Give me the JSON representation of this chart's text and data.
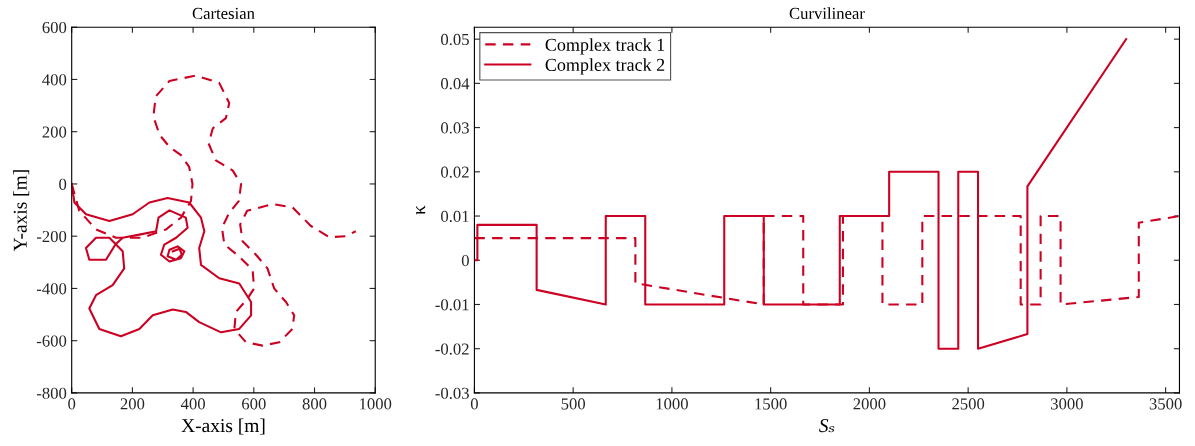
{
  "chart_data": [
    {
      "type": "line",
      "title": "Cartesian",
      "xlabel": "X-axis [m]",
      "ylabel": "Y-axis [m]",
      "xlim": [
        0,
        1000
      ],
      "ylim": [
        -800,
        600
      ],
      "xticks": [
        0,
        200,
        400,
        600,
        800,
        1000
      ],
      "yticks": [
        -800,
        -600,
        -400,
        -200,
        0,
        200,
        400,
        600
      ],
      "grid": false,
      "legend": false,
      "series": [
        {
          "color": "#cc0022",
          "line_style": "dashed",
          "x": [
            0,
            25,
            80,
            146,
            234,
            311,
            360,
            393,
            398,
            387,
            360,
            322,
            290,
            269,
            277,
            322,
            409,
            486,
            519,
            508,
            465,
            451,
            475,
            530,
            558,
            551,
            519,
            495,
            503,
            551,
            596,
            601,
            579,
            541,
            536,
            574,
            629,
            684,
            727,
            733,
            706,
            667,
            645,
            607,
            563,
            555,
            578,
            662,
            728,
            788,
            849,
            903,
            936
          ],
          "values": [
            0,
            -103,
            -174,
            -206,
            -206,
            -174,
            -129,
            -65,
            0,
            65,
            110,
            142,
            187,
            258,
            335,
            394,
            415,
            387,
            310,
            252,
            213,
            155,
            90,
            52,
            0,
            -65,
            -110,
            -168,
            -232,
            -277,
            -329,
            -400,
            -439,
            -490,
            -555,
            -606,
            -619,
            -606,
            -555,
            -503,
            -452,
            -400,
            -323,
            -271,
            -219,
            -155,
            -103,
            -77,
            -90,
            -161,
            -204,
            -200,
            -181
          ]
        },
        {
          "color": "#cc0022",
          "line_style": "solid",
          "x": [
            0,
            9,
            47,
            124,
            201,
            256,
            316,
            387,
            426,
            437,
            420,
            426,
            486,
            552,
            591,
            591,
            552,
            492,
            420,
            376,
            333,
            267,
            223,
            162,
            91,
            58,
            80,
            135,
            173,
            168,
            124,
            80,
            47,
            58,
            113,
            144,
            168,
            223,
            278,
            286,
            322,
            376,
            382,
            344,
            305,
            294,
            322,
            360,
            371,
            349,
            322,
            316,
            344,
            363,
            355,
            333
          ],
          "values": [
            0,
            -71,
            -116,
            -142,
            -116,
            -71,
            -54,
            -71,
            -129,
            -181,
            -245,
            -310,
            -361,
            -381,
            -452,
            -503,
            -555,
            -568,
            -529,
            -490,
            -481,
            -503,
            -555,
            -583,
            -555,
            -477,
            -426,
            -387,
            -323,
            -258,
            -206,
            -206,
            -245,
            -290,
            -290,
            -232,
            -206,
            -194,
            -181,
            -129,
            -101,
            -129,
            -168,
            -206,
            -232,
            -271,
            -297,
            -284,
            -258,
            -239,
            -252,
            -277,
            -290,
            -271,
            -248,
            -258
          ]
        }
      ]
    },
    {
      "type": "line",
      "title": "Curvilinear",
      "xlabel": "Sₛ",
      "ylabel": "κ",
      "xlim": [
        0,
        3570
      ],
      "ylim": [
        -0.03,
        0.0527
      ],
      "xticks": [
        0,
        500,
        1000,
        1500,
        2000,
        2500,
        3000,
        3500
      ],
      "yticks": [
        -0.03,
        -0.02,
        -0.01,
        0,
        0.01,
        0.02,
        0.03,
        0.04,
        0.05
      ],
      "grid": false,
      "legend": "top left",
      "series": [
        {
          "name": "Complex track 1",
          "color": "#cc0022",
          "line_style": "dashed",
          "x": [
            0,
            815,
            815,
            1465,
            1465,
            1665,
            1665,
            1866,
            1866,
            2066,
            2066,
            2268,
            2268,
            2766,
            2766,
            2867,
            2867,
            2968,
            2968,
            3364,
            3364,
            3570
          ],
          "values": [
            0.005,
            0.005,
            -0.0052,
            -0.01,
            0.01,
            0.01,
            -0.01,
            -0.01,
            0.01,
            0.01,
            -0.01,
            -0.01,
            0.01,
            0.01,
            -0.01,
            -0.01,
            0.01,
            0.01,
            -0.01,
            -0.0083,
            0.0085,
            0.01
          ]
        },
        {
          "name": "Complex track 2",
          "color": "#cc0022",
          "line_style": "solid",
          "x": [
            0,
            15,
            15,
            315,
            315,
            665,
            665,
            865,
            865,
            1265,
            1265,
            1465,
            1465,
            1850,
            1850,
            2100,
            2100,
            2350,
            2350,
            2450,
            2450,
            2550,
            2550,
            2800,
            2800,
            3300
          ],
          "values": [
            0,
            0,
            0.008,
            0.008,
            -0.0067,
            -0.01,
            0.01,
            0.01,
            -0.01,
            -0.01,
            0.01,
            0.01,
            -0.01,
            -0.01,
            0.01,
            0.01,
            0.02,
            0.02,
            -0.02,
            -0.02,
            0.02,
            0.02,
            -0.02,
            -0.0167,
            0.0167,
            0.05
          ]
        }
      ]
    }
  ]
}
